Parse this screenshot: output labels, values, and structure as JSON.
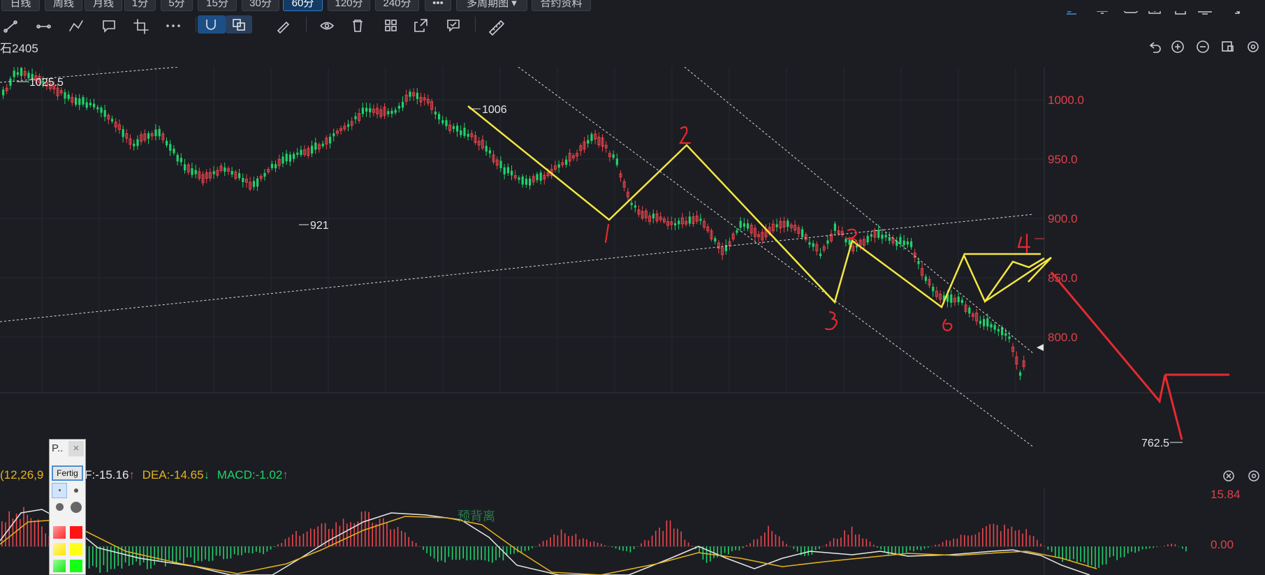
{
  "period_tabs": [
    "日线",
    "周线",
    "月线",
    "1分",
    "5分",
    "15分",
    "30分",
    "60分",
    "120分",
    "240分",
    "•••",
    "多周期图",
    "合约资料"
  ],
  "active_period": "60分",
  "toolbar_icons": [
    "trendline-icon",
    "segment-icon",
    "polyline-icon",
    "comment-icon",
    "crop-icon",
    "more-icon",
    "magnet-icon",
    "overlay-icon",
    "pencil-icon",
    "eye-icon",
    "trash-icon",
    "layout-icon",
    "export-icon",
    "note-icon",
    "ruler-icon"
  ],
  "top_right_icons": [
    "draw-icon",
    "bell-icon",
    "cloud-icon",
    "camera-icon",
    "save-icon",
    "monitor-icon",
    "fullscreen-icon"
  ],
  "symbol": "石2405",
  "chart_controls": [
    "undo-icon",
    "zoom-in-icon",
    "zoom-out-icon",
    "layout-toggle-icon",
    "settings-icon"
  ],
  "price_axis": {
    "ticks": [
      "1000.0",
      "950.0",
      "900.0",
      "850.0",
      "800.0"
    ],
    "range": [
      752,
      1035
    ]
  },
  "annotations": {
    "high": "1025.5",
    "peak": "1006",
    "low_mid": "921",
    "low": "762.5"
  },
  "handwritten_labels": [
    "1",
    "2",
    "3",
    "4",
    "5",
    "6"
  ],
  "watermark": "预背离",
  "macd": {
    "params": "(12,26,9",
    "dif_label": "F:",
    "dif_value": "-15.16",
    "dea_label": "DEA:",
    "dea_value": "-14.65",
    "macd_label": "MACD:",
    "macd_value": "-1.02",
    "ticks": [
      "15.84",
      "0.00"
    ]
  },
  "palette": {
    "title": "P..",
    "close": "×",
    "done": "Fertig"
  },
  "colors": {
    "up": "#f0444c",
    "down": "#1fd36b",
    "yellow": "#f5e642",
    "red_draw": "#e52a31",
    "dif": "#e8e8e8",
    "dea": "#e8b21c",
    "axis_text": "#e0404a"
  },
  "chart_data": {
    "type": "candlestick",
    "title": "",
    "ylim": [
      752,
      1035
    ],
    "close_path_x": [
      0,
      30,
      55,
      70,
      80,
      95,
      110,
      120,
      140,
      147,
      152,
      160,
      175,
      190,
      205,
      220,
      228,
      235,
      248,
      255,
      260,
      270,
      285,
      300,
      315
    ],
    "close_path_y": [
      1012,
      1025.5,
      1013,
      1000,
      998,
      980,
      965,
      950,
      930,
      921,
      940,
      955,
      975,
      988,
      1000,
      1006,
      995,
      990,
      975,
      960,
      955,
      945,
      925,
      940,
      955
    ],
    "note": "series sampled with x = bar index",
    "macd_range": [
      -12,
      15.84
    ]
  }
}
